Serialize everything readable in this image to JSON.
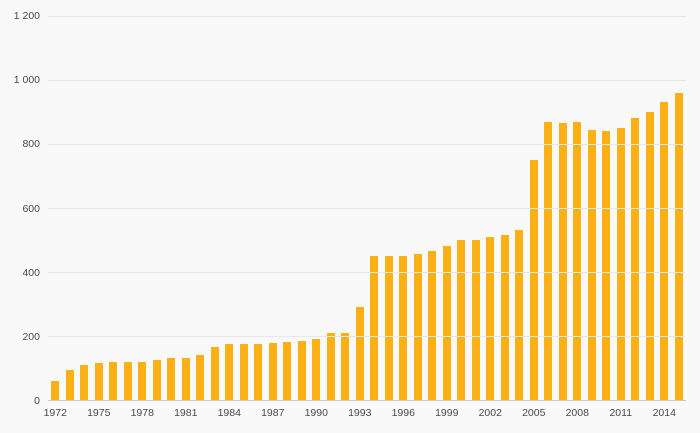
{
  "chart_data": {
    "type": "bar",
    "title": "",
    "xlabel": "",
    "ylabel": "",
    "bar_color": "#fbb116",
    "background_color": "#f9f9f9",
    "grid": true,
    "legend": false,
    "ylim": [
      0,
      1200
    ],
    "yticks": [
      {
        "value": 0,
        "label": "0"
      },
      {
        "value": 200,
        "label": "200"
      },
      {
        "value": 400,
        "label": "400"
      },
      {
        "value": 600,
        "label": "600"
      },
      {
        "value": 800,
        "label": "800"
      },
      {
        "value": 1000,
        "label": "1 000"
      },
      {
        "value": 1200,
        "label": "1 200"
      }
    ],
    "xtick_every": 3,
    "xtick_labels": [
      "1972",
      "1975",
      "1978",
      "1981",
      "1984",
      "1987",
      "1990",
      "1993",
      "1996",
      "1999",
      "2002",
      "2005",
      "2008",
      "2011",
      "2014"
    ],
    "categories": [
      "1972",
      "1973",
      "1974",
      "1975",
      "1976",
      "1977",
      "1978",
      "1979",
      "1980",
      "1981",
      "1982",
      "1983",
      "1984",
      "1985",
      "1986",
      "1987",
      "1988",
      "1989",
      "1990",
      "1991",
      "1992",
      "1993",
      "1994",
      "1995",
      "1996",
      "1997",
      "1998",
      "1999",
      "2000",
      "2001",
      "2002",
      "2003",
      "2004",
      "2005",
      "2006",
      "2007",
      "2008",
      "2009",
      "2010",
      "2011",
      "2012",
      "2013",
      "2014",
      "2015"
    ],
    "values": [
      60,
      95,
      110,
      115,
      120,
      120,
      120,
      125,
      130,
      130,
      140,
      165,
      175,
      175,
      175,
      178,
      180,
      185,
      190,
      210,
      210,
      290,
      450,
      450,
      450,
      455,
      465,
      480,
      500,
      500,
      510,
      515,
      530,
      750,
      870,
      865,
      870,
      845,
      840,
      850,
      880,
      900,
      930,
      960
    ]
  }
}
